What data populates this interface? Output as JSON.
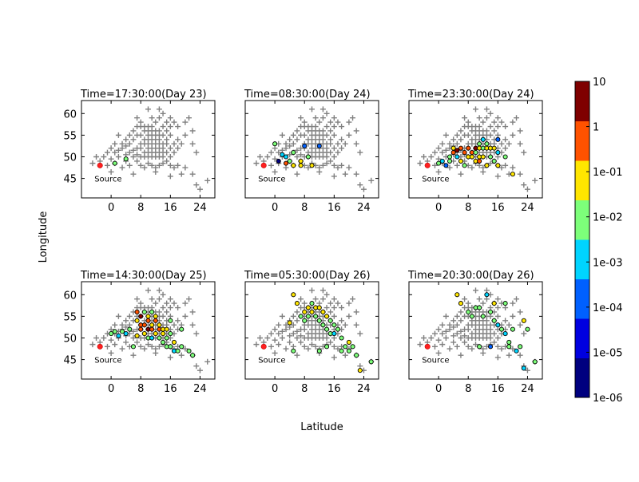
{
  "chart_data": {
    "type": "scatter",
    "xlabel": "Latitude",
    "ylabel": "Longitude",
    "xlim": [
      -8,
      28
    ],
    "ylim": [
      40.5,
      63
    ],
    "xticks": [
      0,
      8,
      16,
      24
    ],
    "yticks": [
      45,
      50,
      55,
      60
    ],
    "source": {
      "label": "Source",
      "x": -3,
      "y": 48,
      "color": "#ff2020"
    },
    "stations": [
      [
        -5,
        48.5
      ],
      [
        -3,
        49
      ],
      [
        -1,
        48
      ],
      [
        0,
        49.5
      ],
      [
        1,
        48.5
      ],
      [
        2,
        50
      ],
      [
        3,
        47.5
      ],
      [
        4,
        49
      ],
      [
        5,
        48
      ],
      [
        6,
        50
      ],
      [
        7,
        49
      ],
      [
        8,
        48
      ],
      [
        9,
        47.5
      ],
      [
        10,
        48.5
      ],
      [
        11,
        48
      ],
      [
        12,
        47.5
      ],
      [
        13,
        48
      ],
      [
        14,
        48.5
      ],
      [
        15,
        49
      ],
      [
        16,
        48
      ],
      [
        17,
        47.5
      ],
      [
        18,
        48
      ],
      [
        19,
        46
      ],
      [
        20,
        47.5
      ],
      [
        22,
        46
      ],
      [
        23,
        43.5
      ],
      [
        24,
        42.5
      ],
      [
        26,
        44.5
      ],
      [
        -1,
        51
      ],
      [
        0,
        52
      ],
      [
        1,
        51
      ],
      [
        1,
        53
      ],
      [
        2,
        51.5
      ],
      [
        3,
        52
      ],
      [
        3,
        53
      ],
      [
        4,
        50.5
      ],
      [
        4,
        52.5
      ],
      [
        5,
        51
      ],
      [
        5,
        53
      ],
      [
        6,
        51.5
      ],
      [
        6,
        54
      ],
      [
        6,
        56
      ],
      [
        7,
        50.5
      ],
      [
        7,
        52
      ],
      [
        7,
        55
      ],
      [
        7,
        57
      ],
      [
        8,
        50
      ],
      [
        8,
        52
      ],
      [
        8,
        53
      ],
      [
        8,
        55
      ],
      [
        8,
        57
      ],
      [
        8,
        58
      ],
      [
        9,
        50
      ],
      [
        9,
        51
      ],
      [
        9,
        53
      ],
      [
        9,
        54
      ],
      [
        9,
        56
      ],
      [
        9,
        57
      ],
      [
        10,
        50
      ],
      [
        10,
        51
      ],
      [
        10,
        52
      ],
      [
        10,
        53
      ],
      [
        10,
        54
      ],
      [
        10,
        55
      ],
      [
        10,
        56
      ],
      [
        10,
        57
      ],
      [
        11,
        50
      ],
      [
        11,
        51
      ],
      [
        11,
        52
      ],
      [
        11,
        53
      ],
      [
        11,
        54
      ],
      [
        11,
        55
      ],
      [
        11,
        56
      ],
      [
        11,
        57
      ],
      [
        11,
        59
      ],
      [
        12,
        50
      ],
      [
        12,
        51
      ],
      [
        12,
        52
      ],
      [
        12,
        53
      ],
      [
        12,
        54
      ],
      [
        12,
        55
      ],
      [
        12,
        56
      ],
      [
        12,
        58
      ],
      [
        13,
        50
      ],
      [
        13,
        51
      ],
      [
        13,
        52
      ],
      [
        13,
        53
      ],
      [
        13,
        54
      ],
      [
        13,
        55
      ],
      [
        13,
        56
      ],
      [
        13,
        59
      ],
      [
        14,
        50
      ],
      [
        14,
        51
      ],
      [
        14,
        52
      ],
      [
        14,
        53
      ],
      [
        14,
        55
      ],
      [
        14,
        57
      ],
      [
        14,
        60
      ],
      [
        15,
        51
      ],
      [
        15,
        53
      ],
      [
        15,
        54
      ],
      [
        15,
        56
      ],
      [
        15,
        58
      ],
      [
        16,
        50
      ],
      [
        16,
        52
      ],
      [
        16,
        55
      ],
      [
        16,
        57
      ],
      [
        16,
        59
      ],
      [
        17,
        51
      ],
      [
        17,
        53
      ],
      [
        17,
        58
      ],
      [
        18,
        52
      ],
      [
        18,
        54
      ],
      [
        18,
        57
      ],
      [
        19,
        53
      ],
      [
        20,
        55
      ],
      [
        20,
        58
      ],
      [
        21,
        59
      ],
      [
        22,
        56
      ],
      [
        22,
        53
      ],
      [
        23,
        51
      ],
      [
        13,
        61
      ],
      [
        10,
        61
      ],
      [
        7,
        59
      ],
      [
        5,
        55
      ],
      [
        4,
        54
      ],
      [
        2,
        55
      ],
      [
        -2,
        50
      ],
      [
        -4,
        50
      ],
      [
        0,
        46.5
      ],
      [
        6,
        46
      ],
      [
        12,
        46.5
      ],
      [
        16,
        45.5
      ]
    ],
    "colorbar": {
      "labels": [
        "1e-06",
        "1e-05",
        "1e-04",
        "1e-03",
        "1e-02",
        "1e-01",
        "1",
        "10"
      ],
      "colors": [
        "#00007f",
        "#0000e0",
        "#0060ff",
        "#00d4ff",
        "#7dff7a",
        "#ffe600",
        "#ff5200",
        "#7f0000"
      ]
    },
    "panels": [
      {
        "title": "Time=17:30:00(Day 23)",
        "points": [
          [
            1,
            48.5,
            4
          ],
          [
            4,
            49.5,
            4
          ]
        ]
      },
      {
        "title": "Time=08:30:00(Day 24)",
        "points": [
          [
            0,
            53,
            4
          ],
          [
            1,
            49,
            0
          ],
          [
            2,
            50.5,
            3
          ],
          [
            3,
            50,
            3
          ],
          [
            3,
            48.5,
            6
          ],
          [
            4,
            49,
            4
          ],
          [
            5,
            51,
            4
          ],
          [
            5,
            48,
            5
          ],
          [
            7,
            49,
            5
          ],
          [
            7,
            48,
            5
          ],
          [
            8,
            52.5,
            2
          ],
          [
            9,
            50,
            4
          ],
          [
            10,
            48,
            5
          ],
          [
            12,
            52.5,
            2
          ]
        ]
      },
      {
        "title": "Time=23:30:00(Day 24)",
        "points": [
          [
            0,
            48.5,
            4
          ],
          [
            1,
            49,
            3
          ],
          [
            2,
            48,
            2
          ],
          [
            3,
            49,
            4
          ],
          [
            3,
            50,
            4
          ],
          [
            4,
            51,
            6
          ],
          [
            4,
            52,
            5
          ],
          [
            5,
            51.5,
            7
          ],
          [
            5,
            50,
            3
          ],
          [
            6,
            52,
            6
          ],
          [
            6,
            49,
            5
          ],
          [
            7,
            51,
            6
          ],
          [
            7,
            48,
            4
          ],
          [
            8,
            50,
            5
          ],
          [
            8,
            52,
            6
          ],
          [
            9,
            50,
            5
          ],
          [
            9,
            51,
            6
          ],
          [
            10,
            49,
            5
          ],
          [
            10,
            51,
            4
          ],
          [
            10,
            52,
            7
          ],
          [
            11,
            49,
            6
          ],
          [
            11,
            50,
            5
          ],
          [
            11,
            52,
            5
          ],
          [
            11,
            53,
            4
          ],
          [
            12,
            50,
            5
          ],
          [
            12,
            52,
            4
          ],
          [
            12,
            54,
            3
          ],
          [
            13,
            48,
            5
          ],
          [
            13,
            52,
            5
          ],
          [
            13,
            53,
            4
          ],
          [
            14,
            50,
            4
          ],
          [
            14,
            52,
            5
          ],
          [
            15,
            49,
            4
          ],
          [
            15,
            52,
            5
          ],
          [
            16,
            48,
            5
          ],
          [
            16,
            51,
            3
          ],
          [
            16,
            54,
            2
          ],
          [
            18,
            50,
            4
          ],
          [
            20,
            46,
            5
          ]
        ]
      },
      {
        "title": "Time=14:30:00(Day 25)",
        "points": [
          [
            0,
            51,
            4
          ],
          [
            1,
            51.5,
            4
          ],
          [
            2,
            50.5,
            3
          ],
          [
            3,
            51.5,
            4
          ],
          [
            4,
            51,
            3
          ],
          [
            5,
            52,
            4
          ],
          [
            6,
            48,
            4
          ],
          [
            7,
            50.5,
            5
          ],
          [
            7,
            54,
            5
          ],
          [
            7,
            56,
            6
          ],
          [
            8,
            52,
            6
          ],
          [
            8,
            55,
            7
          ],
          [
            8,
            53,
            6
          ],
          [
            9,
            51,
            5
          ],
          [
            9,
            53,
            6
          ],
          [
            9,
            56,
            4
          ],
          [
            10,
            50,
            4
          ],
          [
            10,
            52,
            7
          ],
          [
            10,
            54,
            6
          ],
          [
            10,
            55,
            5
          ],
          [
            11,
            50,
            3
          ],
          [
            11,
            52,
            6
          ],
          [
            11,
            53,
            5
          ],
          [
            11,
            56,
            4
          ],
          [
            12,
            51,
            5
          ],
          [
            12,
            54,
            6
          ],
          [
            12,
            55,
            5
          ],
          [
            13,
            50,
            4
          ],
          [
            13,
            52,
            6
          ],
          [
            13,
            53,
            5
          ],
          [
            14,
            49,
            4
          ],
          [
            14,
            51,
            5
          ],
          [
            14,
            52,
            5
          ],
          [
            15,
            48,
            4
          ],
          [
            15,
            50,
            4
          ],
          [
            15,
            52,
            5
          ],
          [
            16,
            48,
            4
          ],
          [
            16,
            51,
            4
          ],
          [
            16,
            54,
            4
          ],
          [
            17,
            47,
            3
          ],
          [
            17,
            49,
            5
          ],
          [
            18,
            47,
            4
          ],
          [
            19,
            48,
            4
          ],
          [
            19,
            52,
            4
          ],
          [
            21,
            47,
            4
          ],
          [
            22,
            46,
            4
          ]
        ]
      },
      {
        "title": "Time=05:30:00(Day 26)",
        "points": [
          [
            4,
            53.5,
            5
          ],
          [
            5,
            60,
            5
          ],
          [
            6,
            58,
            5
          ],
          [
            7,
            55,
            4
          ],
          [
            8,
            56,
            5
          ],
          [
            8,
            54,
            4
          ],
          [
            9,
            57,
            5
          ],
          [
            9,
            55,
            4
          ],
          [
            10,
            56,
            5
          ],
          [
            10,
            58,
            4
          ],
          [
            11,
            57,
            5
          ],
          [
            11,
            55,
            4
          ],
          [
            12,
            54,
            4
          ],
          [
            12,
            57,
            5
          ],
          [
            13,
            53,
            4
          ],
          [
            13,
            56,
            5
          ],
          [
            14,
            55,
            5
          ],
          [
            14,
            52,
            4
          ],
          [
            15,
            54,
            4
          ],
          [
            15,
            51,
            4
          ],
          [
            16,
            53,
            4
          ],
          [
            16,
            51,
            3
          ],
          [
            17,
            52,
            4
          ],
          [
            18,
            50,
            4
          ],
          [
            18,
            47,
            4
          ],
          [
            19,
            48,
            4
          ],
          [
            20,
            47,
            4
          ],
          [
            20,
            49,
            5
          ],
          [
            21,
            48,
            4
          ],
          [
            22,
            46,
            4
          ],
          [
            23,
            42.5,
            5
          ],
          [
            26,
            44.5,
            4
          ],
          [
            14,
            48,
            4
          ],
          [
            12,
            47,
            4
          ],
          [
            5,
            47,
            4
          ]
        ]
      },
      {
        "title": "Time=20:30:00(Day 26)",
        "points": [
          [
            5,
            60,
            5
          ],
          [
            6,
            58,
            5
          ],
          [
            8,
            56,
            4
          ],
          [
            9,
            55,
            4
          ],
          [
            10,
            57,
            4
          ],
          [
            11,
            57,
            4
          ],
          [
            12,
            55,
            4
          ],
          [
            13,
            60,
            3
          ],
          [
            14,
            56,
            4
          ],
          [
            15,
            54,
            4
          ],
          [
            15,
            58,
            5
          ],
          [
            16,
            53,
            3
          ],
          [
            17,
            52,
            4
          ],
          [
            18,
            51,
            3
          ],
          [
            18,
            58,
            4
          ],
          [
            19,
            49,
            4
          ],
          [
            19,
            48,
            4
          ],
          [
            20,
            52,
            4
          ],
          [
            21,
            47,
            3
          ],
          [
            22,
            48,
            4
          ],
          [
            23,
            43,
            3
          ],
          [
            23,
            54,
            5
          ],
          [
            24,
            52,
            4
          ],
          [
            26,
            44.5,
            4
          ],
          [
            14,
            48,
            2
          ],
          [
            11,
            48,
            4
          ]
        ]
      }
    ]
  }
}
